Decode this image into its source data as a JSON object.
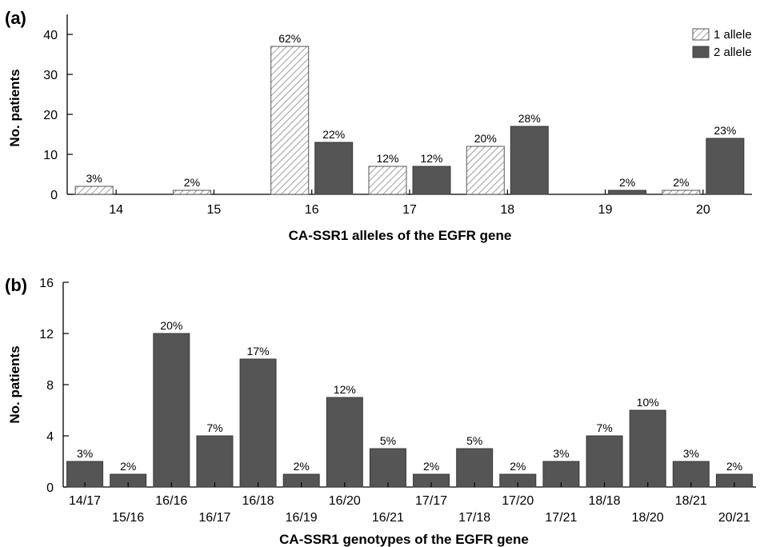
{
  "chart_data": [
    {
      "panel": "(a)",
      "type": "bar",
      "xlabel": "CA-SSR1 alleles of the EGFR gene",
      "ylabel": "No. patients",
      "ylim": [
        0,
        45
      ],
      "yticks": [
        0,
        10,
        20,
        30,
        40
      ],
      "categories": [
        "14",
        "15",
        "16",
        "17",
        "18",
        "19",
        "20"
      ],
      "legend_position": "top-right",
      "series": [
        {
          "name": "1 allele",
          "style": "hatched",
          "fill": "#ffffff",
          "values": [
            2,
            1,
            37,
            7,
            12,
            0,
            1
          ],
          "labels": [
            "3%",
            "2%",
            "62%",
            "12%",
            "20%",
            "",
            "2%"
          ]
        },
        {
          "name": "2 allele",
          "style": "solid",
          "fill": "#555555",
          "values": [
            0,
            0,
            13,
            7,
            17,
            1,
            14
          ],
          "labels": [
            "",
            "",
            "22%",
            "12%",
            "28%",
            "2%",
            "23%"
          ]
        }
      ]
    },
    {
      "panel": "(b)",
      "type": "bar",
      "xlabel": "CA-SSR1 genotypes of the EGFR gene",
      "ylabel": "No. patients",
      "ylim": [
        0,
        16
      ],
      "yticks": [
        0,
        4,
        8,
        12,
        16
      ],
      "categories": [
        "14/17",
        "15/16",
        "16/16",
        "16/17",
        "16/18",
        "16/19",
        "16/20",
        "16/21",
        "17/17",
        "17/18",
        "17/20",
        "17/21",
        "18/18",
        "18/20",
        "18/21",
        "20/21"
      ],
      "series": [
        {
          "fill": "#555555",
          "values": [
            2,
            1,
            12,
            4,
            10,
            1,
            7,
            3,
            1,
            3,
            1,
            2,
            4,
            6,
            2,
            1
          ],
          "labels": [
            "3%",
            "2%",
            "20%",
            "7%",
            "17%",
            "2%",
            "12%",
            "5%",
            "2%",
            "5%",
            "2%",
            "3%",
            "7%",
            "10%",
            "3%",
            "2%"
          ]
        }
      ]
    }
  ]
}
